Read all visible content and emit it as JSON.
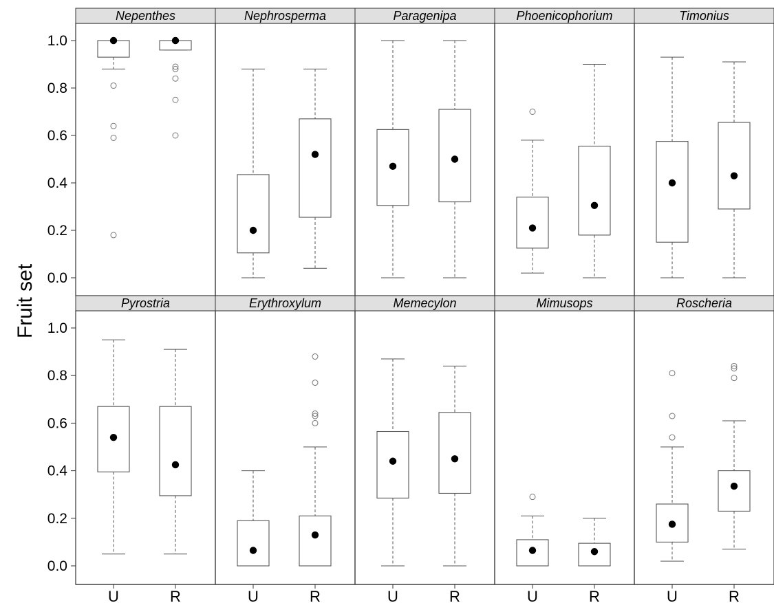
{
  "chart_data": {
    "type": "box",
    "ylabel": "Fruit set",
    "yticks": [
      0.0,
      0.2,
      0.4,
      0.6,
      0.8,
      1.0
    ],
    "ytick_labels": [
      "0.0",
      "0.2",
      "0.4",
      "0.6",
      "0.8",
      "1.0"
    ],
    "ylim": [
      -0.06,
      1.06
    ],
    "x_categories": [
      "U",
      "R"
    ],
    "grid": false,
    "colors": {
      "strip_fill": "#e0e0e0",
      "frame": "#333333",
      "box": "#555555",
      "outlier": "#777777",
      "mean": "#000000"
    },
    "panels": [
      {
        "label": "Nepenthes",
        "boxes": [
          {
            "cat": "U",
            "q1": 0.93,
            "median": 1.0,
            "q3": 1.0,
            "whisker_low": 0.88,
            "whisker_high": 1.0,
            "mean": 1.0,
            "outliers": [
              0.81,
              0.64,
              0.59,
              0.18
            ]
          },
          {
            "cat": "R",
            "q1": 0.96,
            "median": 1.0,
            "q3": 1.0,
            "whisker_low": 0.96,
            "whisker_high": 1.0,
            "mean": 1.0,
            "outliers": [
              0.89,
              0.88,
              0.84,
              0.75,
              0.6
            ]
          }
        ]
      },
      {
        "label": "Nephrosperma",
        "boxes": [
          {
            "cat": "U",
            "q1": 0.105,
            "median": null,
            "q3": 0.435,
            "whisker_low": 0.0,
            "whisker_high": 0.88,
            "mean": 0.2,
            "outliers": []
          },
          {
            "cat": "R",
            "q1": 0.255,
            "median": null,
            "q3": 0.67,
            "whisker_low": 0.04,
            "whisker_high": 0.88,
            "mean": 0.52,
            "outliers": []
          }
        ]
      },
      {
        "label": "Paragenipa",
        "boxes": [
          {
            "cat": "U",
            "q1": 0.305,
            "median": null,
            "q3": 0.625,
            "whisker_low": 0.0,
            "whisker_high": 1.0,
            "mean": 0.47,
            "outliers": []
          },
          {
            "cat": "R",
            "q1": 0.32,
            "median": null,
            "q3": 0.71,
            "whisker_low": 0.0,
            "whisker_high": 1.0,
            "mean": 0.5,
            "outliers": []
          }
        ]
      },
      {
        "label": "Phoenicophorium",
        "boxes": [
          {
            "cat": "U",
            "q1": 0.125,
            "median": null,
            "q3": 0.34,
            "whisker_low": 0.02,
            "whisker_high": 0.58,
            "mean": 0.21,
            "outliers": [
              0.7
            ]
          },
          {
            "cat": "R",
            "q1": 0.18,
            "median": null,
            "q3": 0.555,
            "whisker_low": 0.0,
            "whisker_high": 0.9,
            "mean": 0.305,
            "outliers": []
          }
        ]
      },
      {
        "label": "Timonius",
        "boxes": [
          {
            "cat": "U",
            "q1": 0.15,
            "median": null,
            "q3": 0.575,
            "whisker_low": 0.0,
            "whisker_high": 0.93,
            "mean": 0.4,
            "outliers": []
          },
          {
            "cat": "R",
            "q1": 0.29,
            "median": null,
            "q3": 0.655,
            "whisker_low": 0.0,
            "whisker_high": 0.91,
            "mean": 0.43,
            "outliers": []
          }
        ]
      },
      {
        "label": "Pyrostria",
        "boxes": [
          {
            "cat": "U",
            "q1": 0.395,
            "median": null,
            "q3": 0.67,
            "whisker_low": 0.05,
            "whisker_high": 0.95,
            "mean": 0.54,
            "outliers": []
          },
          {
            "cat": "R",
            "q1": 0.295,
            "median": null,
            "q3": 0.67,
            "whisker_low": 0.05,
            "whisker_high": 0.91,
            "mean": 0.425,
            "outliers": []
          }
        ]
      },
      {
        "label": "Erythroxylum",
        "boxes": [
          {
            "cat": "U",
            "q1": 0.0,
            "median": null,
            "q3": 0.19,
            "whisker_low": 0.0,
            "whisker_high": 0.4,
            "mean": 0.065,
            "outliers": []
          },
          {
            "cat": "R",
            "q1": 0.0,
            "median": null,
            "q3": 0.21,
            "whisker_low": 0.0,
            "whisker_high": 0.5,
            "mean": 0.13,
            "outliers": [
              0.88,
              0.77,
              0.64,
              0.63,
              0.6
            ]
          }
        ]
      },
      {
        "label": "Memecylon",
        "boxes": [
          {
            "cat": "U",
            "q1": 0.285,
            "median": null,
            "q3": 0.565,
            "whisker_low": 0.0,
            "whisker_high": 0.87,
            "mean": 0.44,
            "outliers": []
          },
          {
            "cat": "R",
            "q1": 0.305,
            "median": null,
            "q3": 0.645,
            "whisker_low": 0.0,
            "whisker_high": 0.84,
            "mean": 0.45,
            "outliers": []
          }
        ]
      },
      {
        "label": "Mimusops",
        "boxes": [
          {
            "cat": "U",
            "q1": 0.0,
            "median": null,
            "q3": 0.11,
            "whisker_low": 0.0,
            "whisker_high": 0.21,
            "mean": 0.065,
            "outliers": [
              0.29
            ]
          },
          {
            "cat": "R",
            "q1": 0.0,
            "median": null,
            "q3": 0.095,
            "whisker_low": 0.0,
            "whisker_high": 0.2,
            "mean": 0.06,
            "outliers": []
          }
        ]
      },
      {
        "label": "Roscheria",
        "boxes": [
          {
            "cat": "U",
            "q1": 0.1,
            "median": null,
            "q3": 0.26,
            "whisker_low": 0.02,
            "whisker_high": 0.5,
            "mean": 0.175,
            "outliers": [
              0.81,
              0.63,
              0.54
            ]
          },
          {
            "cat": "R",
            "q1": 0.23,
            "median": null,
            "q3": 0.4,
            "whisker_low": 0.07,
            "whisker_high": 0.61,
            "mean": 0.335,
            "outliers": [
              0.84,
              0.83,
              0.79
            ]
          }
        ]
      }
    ]
  }
}
